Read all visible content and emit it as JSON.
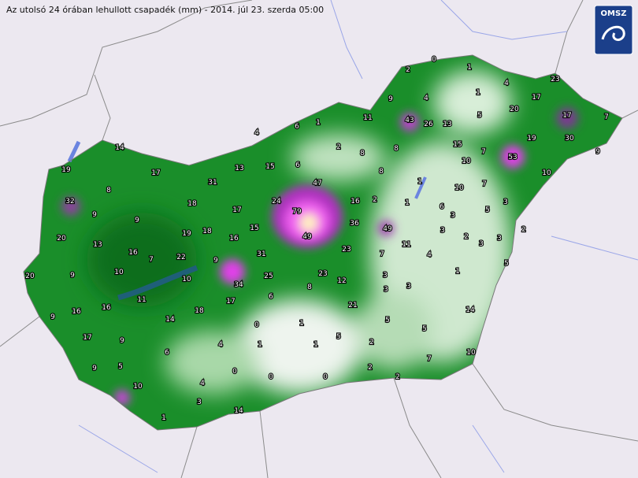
{
  "header": {
    "title": "Az utolsó 24 órában lehullott csapadék (mm) - 2014. júl 23. szerda 05:00",
    "logo": "OMSZ"
  },
  "stations": [
    0,
    1,
    2,
    4,
    23,
    9,
    4,
    1,
    11,
    43,
    26,
    13,
    5,
    20,
    17,
    17,
    7,
    6,
    1,
    4,
    2,
    8,
    8,
    15,
    7,
    19,
    30,
    9,
    14,
    10,
    53,
    10,
    19,
    17,
    13,
    15,
    6,
    8,
    31,
    47,
    1,
    10,
    7,
    8,
    24,
    16,
    2,
    1,
    6,
    5,
    3,
    32,
    18,
    17,
    79,
    9,
    9,
    36,
    3,
    15,
    49,
    3,
    2,
    2,
    20,
    19,
    18,
    16,
    49,
    13,
    11,
    3,
    3,
    16,
    7,
    22,
    31,
    23,
    7,
    4,
    9,
    5,
    20,
    9,
    10,
    10,
    25,
    23,
    12,
    3,
    1,
    34,
    8,
    3,
    11,
    6,
    17,
    21,
    3,
    16,
    16,
    18,
    14,
    9,
    14,
    5,
    0,
    1,
    5,
    17,
    9,
    5,
    4,
    1,
    1,
    2,
    6,
    7,
    10,
    9,
    5,
    0,
    2,
    0,
    0,
    2,
    10,
    4,
    3,
    14,
    1
  ]
}
